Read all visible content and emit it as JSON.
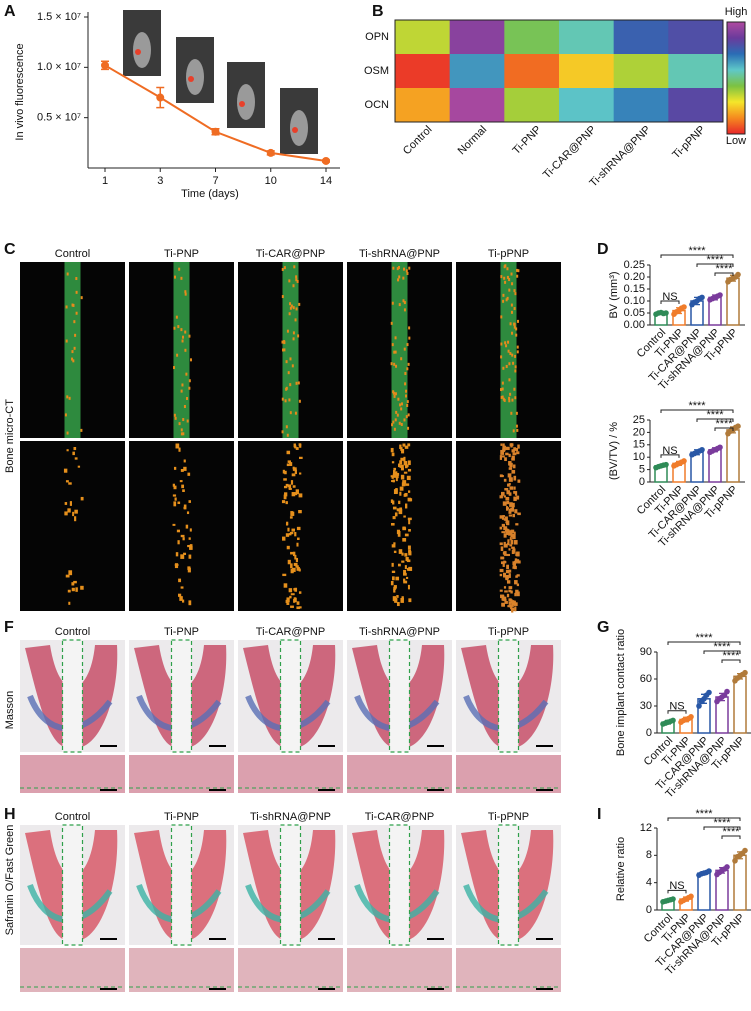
{
  "figure": {
    "panel_labels": [
      "A",
      "B",
      "C",
      "D",
      "F",
      "G",
      "H",
      "I"
    ],
    "micro_ct": {
      "columns": [
        "Control",
        "Ti-PNP",
        "Ti-CAR@PNP",
        "Ti-shRNA@PNP",
        "Ti-pPNP"
      ],
      "row_label": "Bone micro-CT"
    },
    "masson": {
      "columns": [
        "Control",
        "Ti-PNP",
        "Ti-CAR@PNP",
        "Ti-shRNA@PNP",
        "Ti-pPNP"
      ],
      "row_label": "Masson"
    },
    "safranin": {
      "columns": [
        "Control",
        "Ti-PNP",
        "Ti-shRNA@PNP",
        "Ti-CAR@PNP",
        "Ti-pPNP"
      ],
      "row_label": "Safranin O/Fast Green"
    }
  },
  "chart_data": [
    {
      "type": "line",
      "categories": [
        "1",
        "3",
        "7",
        "10",
        "14"
      ],
      "values": [
        10200000,
        7000000,
        3600000,
        1500000,
        700000
      ],
      "errors": [
        400000,
        1000000,
        300000,
        200000,
        100000
      ],
      "color": "#ef6c23",
      "ylim": [
        0,
        15000000
      ],
      "yticks": [
        {
          "value": 5000000,
          "label": "0.5 × 10⁷"
        },
        {
          "value": 10000000,
          "label": "1.0 × 10⁷"
        },
        {
          "value": 15000000,
          "label": "1.5 × 10⁷"
        }
      ],
      "x_label": "Time (days)",
      "y_label": "In vivo fluorescence"
    },
    {
      "type": "heatmap",
      "rows": [
        "OPN",
        "OSM",
        "OCN"
      ],
      "categories": [
        "Control",
        "Normal",
        "Ti-PNP",
        "Ti-CAR@PNP",
        "Ti-shRNA@PNP",
        "Ti-pPNP"
      ],
      "values": [
        [
          0.35,
          0.92,
          0.45,
          0.55,
          0.75,
          0.8
        ],
        [
          0.03,
          0.65,
          0.1,
          0.24,
          0.37,
          0.55
        ],
        [
          0.18,
          0.98,
          0.38,
          0.58,
          0.68,
          0.82
        ]
      ],
      "zlim": [
        0,
        1
      ],
      "colorscale": [
        "#e8262a",
        "#f58a1f",
        "#f5e62a",
        "#7cc242",
        "#5fc8c8",
        "#2a6db5",
        "#6a3b9c",
        "#b04aa0"
      ],
      "high_label": "High",
      "low_label": "Low"
    },
    {
      "type": "dotbar",
      "categories": [
        "Control",
        "Ti-PNP",
        "Ti-CAR@PNP",
        "Ti-shRNA@PNP",
        "Ti-pPNP"
      ],
      "values": [
        0.05,
        0.06,
        0.1,
        0.115,
        0.195
      ],
      "errors": [
        0.005,
        0.012,
        0.015,
        0.01,
        0.012
      ],
      "points": [
        [
          0.045,
          0.05,
          0.052,
          0.048,
          0.05
        ],
        [
          0.045,
          0.055,
          0.06,
          0.07,
          0.075
        ],
        [
          0.085,
          0.095,
          0.1,
          0.11,
          0.115
        ],
        [
          0.105,
          0.11,
          0.115,
          0.12,
          0.125
        ],
        [
          0.18,
          0.19,
          0.195,
          0.2,
          0.21
        ]
      ],
      "colors": [
        "#2e8b57",
        "#f07c2a",
        "#2857a6",
        "#7a3b9c",
        "#b07a3a"
      ],
      "ylim": [
        0,
        0.25
      ],
      "yticks": [
        {
          "value": 0,
          "label": "0.00"
        },
        0.05,
        {
          "value": 0.1,
          "label": "0.10"
        },
        0.15,
        {
          "value": 0.2,
          "label": "0.20"
        },
        0.25
      ],
      "y_label": "BV (mm³)",
      "annotations": [
        "NS",
        "****",
        "****",
        "****"
      ]
    },
    {
      "type": "dotbar",
      "categories": [
        "Control",
        "Ti-PNP",
        "Ti-CAR@PNP",
        "Ti-shRNA@PNP",
        "Ti-pPNP"
      ],
      "values": [
        6.5,
        7.5,
        12,
        13,
        21
      ],
      "errors": [
        0.5,
        0.8,
        1,
        0.8,
        1.2
      ],
      "points": [
        [
          5.8,
          6.2,
          6.5,
          6.8,
          7
        ],
        [
          6.5,
          7,
          7.5,
          8,
          8.5
        ],
        [
          11,
          11.5,
          12,
          12.5,
          13
        ],
        [
          12,
          12.5,
          13,
          13.5,
          14
        ],
        [
          19.5,
          20.5,
          21,
          22,
          22.5
        ]
      ],
      "colors": [
        "#2e8b57",
        "#f07c2a",
        "#2857a6",
        "#7a3b9c",
        "#b07a3a"
      ],
      "ylim": [
        0,
        25
      ],
      "yticks": [
        0,
        5,
        10,
        15,
        20,
        25
      ],
      "y_label": "(BV/TV) / %",
      "annotations": [
        "NS",
        "****",
        "****",
        "****"
      ]
    },
    {
      "type": "dotbar",
      "categories": [
        "Control",
        "Ti-PNP",
        "Ti-CAR@PNP",
        "Ti-shRNA@PNP",
        "Ti-pPNP"
      ],
      "values": [
        12,
        15,
        38,
        40,
        63
      ],
      "errors": [
        2,
        2.5,
        5,
        4,
        3
      ],
      "points": [
        [
          10,
          11,
          12,
          13,
          14
        ],
        [
          12,
          14,
          15,
          16,
          18
        ],
        [
          30,
          35,
          38,
          42,
          45
        ],
        [
          35,
          38,
          40,
          42,
          46
        ],
        [
          58,
          61,
          63,
          65,
          67
        ]
      ],
      "colors": [
        "#2e8b57",
        "#f07c2a",
        "#2857a6",
        "#7a3b9c",
        "#b07a3a"
      ],
      "ylim": [
        0,
        90
      ],
      "yticks": [
        0,
        30,
        60,
        90
      ],
      "y_label": "Bone implant contact ratio",
      "annotations": [
        "NS",
        "****",
        "****",
        "****"
      ]
    },
    {
      "type": "dotbar",
      "categories": [
        "Control",
        "Ti-PNP",
        "Ti-CAR@PNP",
        "Ti-shRNA@PNP",
        "Ti-pPNP"
      ],
      "values": [
        1.4,
        1.6,
        5.4,
        5.8,
        8
      ],
      "errors": [
        0.2,
        0.3,
        0.2,
        0.4,
        0.5
      ],
      "points": [
        [
          1.2,
          1.3,
          1.4,
          1.5,
          1.6
        ],
        [
          1.2,
          1.4,
          1.6,
          1.8,
          2
        ],
        [
          5.1,
          5.3,
          5.4,
          5.5,
          5.7
        ],
        [
          5.2,
          5.5,
          5.8,
          6,
          6.3
        ],
        [
          7.2,
          7.8,
          8,
          8.3,
          8.7
        ]
      ],
      "colors": [
        "#2e8b57",
        "#f07c2a",
        "#2857a6",
        "#7a3b9c",
        "#b07a3a"
      ],
      "ylim": [
        0,
        12
      ],
      "yticks": [
        0,
        4,
        8,
        12
      ],
      "y_label": "Relative ratio",
      "annotations": [
        "NS",
        "****",
        "****",
        "****"
      ]
    }
  ]
}
